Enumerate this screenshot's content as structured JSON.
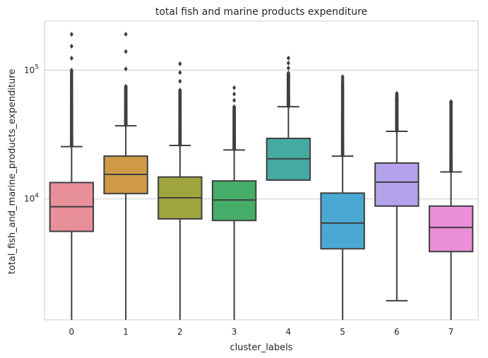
{
  "chart_data": {
    "type": "boxplot",
    "title": "total fish and marine products expenditure",
    "xlabel": "cluster_labels",
    "ylabel": "total_fish_and_marine_products_expenditure",
    "yscale": "log",
    "ylim": [
      1150,
      240000
    ],
    "y_ticks": [
      {
        "value": 10000,
        "base": "10",
        "exp": "4"
      },
      {
        "value": 100000,
        "base": "10",
        "exp": "5"
      }
    ],
    "grid": "horizontal",
    "categories": [
      "0",
      "1",
      "2",
      "3",
      "4",
      "5",
      "6",
      "7"
    ],
    "boxes": [
      {
        "label": "0",
        "color": "#e8909a",
        "whisker_low": 1150,
        "q1": 5600,
        "median": 8700,
        "q3": 13400,
        "whisker_high": 25500,
        "outlier_max": 190000,
        "outliers_dense_to": 100000
      },
      {
        "label": "1",
        "color": "#cf9a48",
        "whisker_low": 1150,
        "q1": 11000,
        "median": 15500,
        "q3": 21500,
        "whisker_high": 37000,
        "outlier_max": 190000,
        "outliers_dense_to": 75000
      },
      {
        "label": "2",
        "color": "#a0a43e",
        "whisker_low": 1150,
        "q1": 7000,
        "median": 10200,
        "q3": 14800,
        "whisker_high": 26000,
        "outlier_max": 112000,
        "outliers_dense_to": 70000
      },
      {
        "label": "3",
        "color": "#45ad67",
        "whisker_low": 1150,
        "q1": 6800,
        "median": 9800,
        "q3": 13800,
        "whisker_high": 24000,
        "outlier_max": 73000,
        "outliers_dense_to": 52000
      },
      {
        "label": "4",
        "color": "#45aba0",
        "whisker_low": 14000,
        "q1": 14000,
        "median": 20500,
        "q3": 29500,
        "whisker_high": 52000,
        "outlier_max": 124000,
        "outliers_dense_to": 95000
      },
      {
        "label": "5",
        "color": "#4aa9d3",
        "whisker_low": 1150,
        "q1": 4100,
        "median": 6500,
        "q3": 11100,
        "whisker_high": 21500,
        "outlier_max": 89000,
        "outliers_dense_to": 80000
      },
      {
        "label": "6",
        "color": "#b4a2eb",
        "whisker_low": 1620,
        "q1": 8800,
        "median": 13500,
        "q3": 19000,
        "whisker_high": 33500,
        "outlier_max": 66000,
        "outliers_dense_to": 62000
      },
      {
        "label": "7",
        "color": "#ea8ed9",
        "whisker_low": 1150,
        "q1": 3900,
        "median": 6000,
        "q3": 8800,
        "whisker_high": 16200,
        "outlier_max": 57000,
        "outliers_dense_to": 55000
      }
    ]
  }
}
